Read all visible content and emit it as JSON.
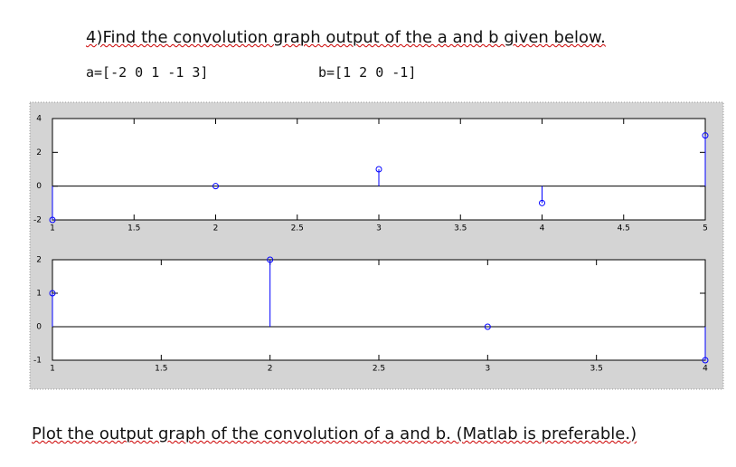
{
  "question": "4)Find the convolution graph output of the a and b given below.",
  "a_def": "a=[-2 0 1 -1 3]",
  "b_def": "b=[1 2 0 -1]",
  "instruction": "Plot the output graph of the convolution of a and b. (Matlab is preferable.)",
  "chart_data": [
    {
      "type": "stem",
      "x": [
        1,
        2,
        3,
        4,
        5
      ],
      "values": [
        -2,
        0,
        1,
        -1,
        3
      ],
      "color": "#0000ff",
      "xlim": [
        1,
        5
      ],
      "xticks": [
        1,
        1.5,
        2,
        2.5,
        3,
        3.5,
        4,
        4.5,
        5
      ],
      "ylim": [
        -2,
        4
      ],
      "yticks": [
        -2,
        0,
        2,
        4
      ]
    },
    {
      "type": "stem",
      "x": [
        1,
        2,
        3,
        4
      ],
      "values": [
        1,
        2,
        0,
        -1
      ],
      "color": "#0000ff",
      "xlim": [
        1,
        4
      ],
      "xticks": [
        1,
        1.5,
        2,
        2.5,
        3,
        3.5,
        4
      ],
      "ylim": [
        -1,
        2
      ],
      "yticks": [
        -1,
        0,
        1,
        2
      ]
    }
  ]
}
